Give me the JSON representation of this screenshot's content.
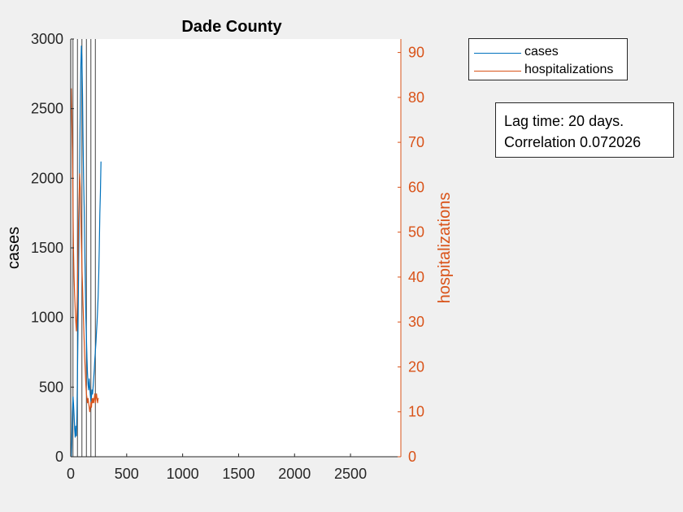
{
  "chart_data": {
    "type": "line",
    "title": "Dade County",
    "ylabel_left": "cases",
    "ylabel_right": "hospitalizations",
    "xlim": [
      0,
      2950
    ],
    "ylim_left": [
      0,
      3000
    ],
    "ylim_right": [
      0,
      93
    ],
    "xticks": [
      0,
      500,
      1000,
      1500,
      2000,
      2500
    ],
    "yticks_left": [
      0,
      500,
      1000,
      1500,
      2000,
      2500,
      3000
    ],
    "yticks_right": [
      0,
      10,
      20,
      30,
      40,
      50,
      60,
      70,
      80,
      90
    ],
    "grid": false,
    "legend_position": "outside-top-right",
    "series": [
      {
        "name": "cases",
        "axis": "left",
        "color": "#0072bd",
        "x": [
          5,
          10,
          15,
          20,
          25,
          30,
          35,
          40,
          45,
          50,
          55,
          60,
          65,
          70,
          75,
          80,
          85,
          90,
          95,
          100,
          105,
          110,
          115,
          120,
          125,
          130,
          135,
          140,
          145,
          150,
          155,
          160,
          165,
          170,
          175,
          180,
          185,
          190,
          195,
          200,
          205,
          210,
          215,
          220,
          225,
          230,
          235,
          240,
          245,
          250,
          255,
          260,
          265,
          270
        ],
        "values": [
          0,
          150,
          320,
          430,
          380,
          300,
          200,
          140,
          220,
          150,
          300,
          600,
          900,
          1300,
          1700,
          2100,
          2500,
          2800,
          2950,
          2850,
          2600,
          2300,
          2000,
          1800,
          1500,
          1250,
          1000,
          850,
          700,
          600,
          520,
          480,
          560,
          500,
          440,
          400,
          430,
          480,
          450,
          500,
          560,
          620,
          700,
          760,
          820,
          900,
          960,
          1050,
          1150,
          1300,
          1500,
          1750,
          1900,
          2120
        ]
      },
      {
        "name": "hospitalizations",
        "axis": "right",
        "color": "#d95319",
        "x": [
          5,
          10,
          15,
          20,
          25,
          30,
          35,
          40,
          45,
          50,
          55,
          60,
          65,
          70,
          75,
          80,
          85,
          90,
          95,
          100,
          105,
          110,
          115,
          120,
          125,
          130,
          135,
          140,
          145,
          150,
          155,
          160,
          165,
          170,
          175,
          180,
          185,
          190,
          195,
          200,
          205,
          210,
          215,
          220,
          225,
          230,
          235,
          240,
          245,
          250
        ],
        "values": [
          82,
          75,
          68,
          55,
          46,
          40,
          36,
          33,
          30,
          28,
          32,
          38,
          45,
          52,
          58,
          63,
          60,
          54,
          48,
          42,
          38,
          34,
          30,
          26,
          22,
          19,
          16,
          14,
          13,
          12,
          13,
          12,
          11,
          10,
          11,
          12,
          11,
          13,
          12,
          13,
          12,
          13,
          14,
          12,
          13,
          14,
          13,
          12,
          13,
          13
        ]
      }
    ],
    "event_lines_x": [
      20,
      60,
      100,
      140,
      180,
      220
    ],
    "annotation": [
      "Lag time: 20 days.",
      "Correlation 0.072026"
    ]
  }
}
